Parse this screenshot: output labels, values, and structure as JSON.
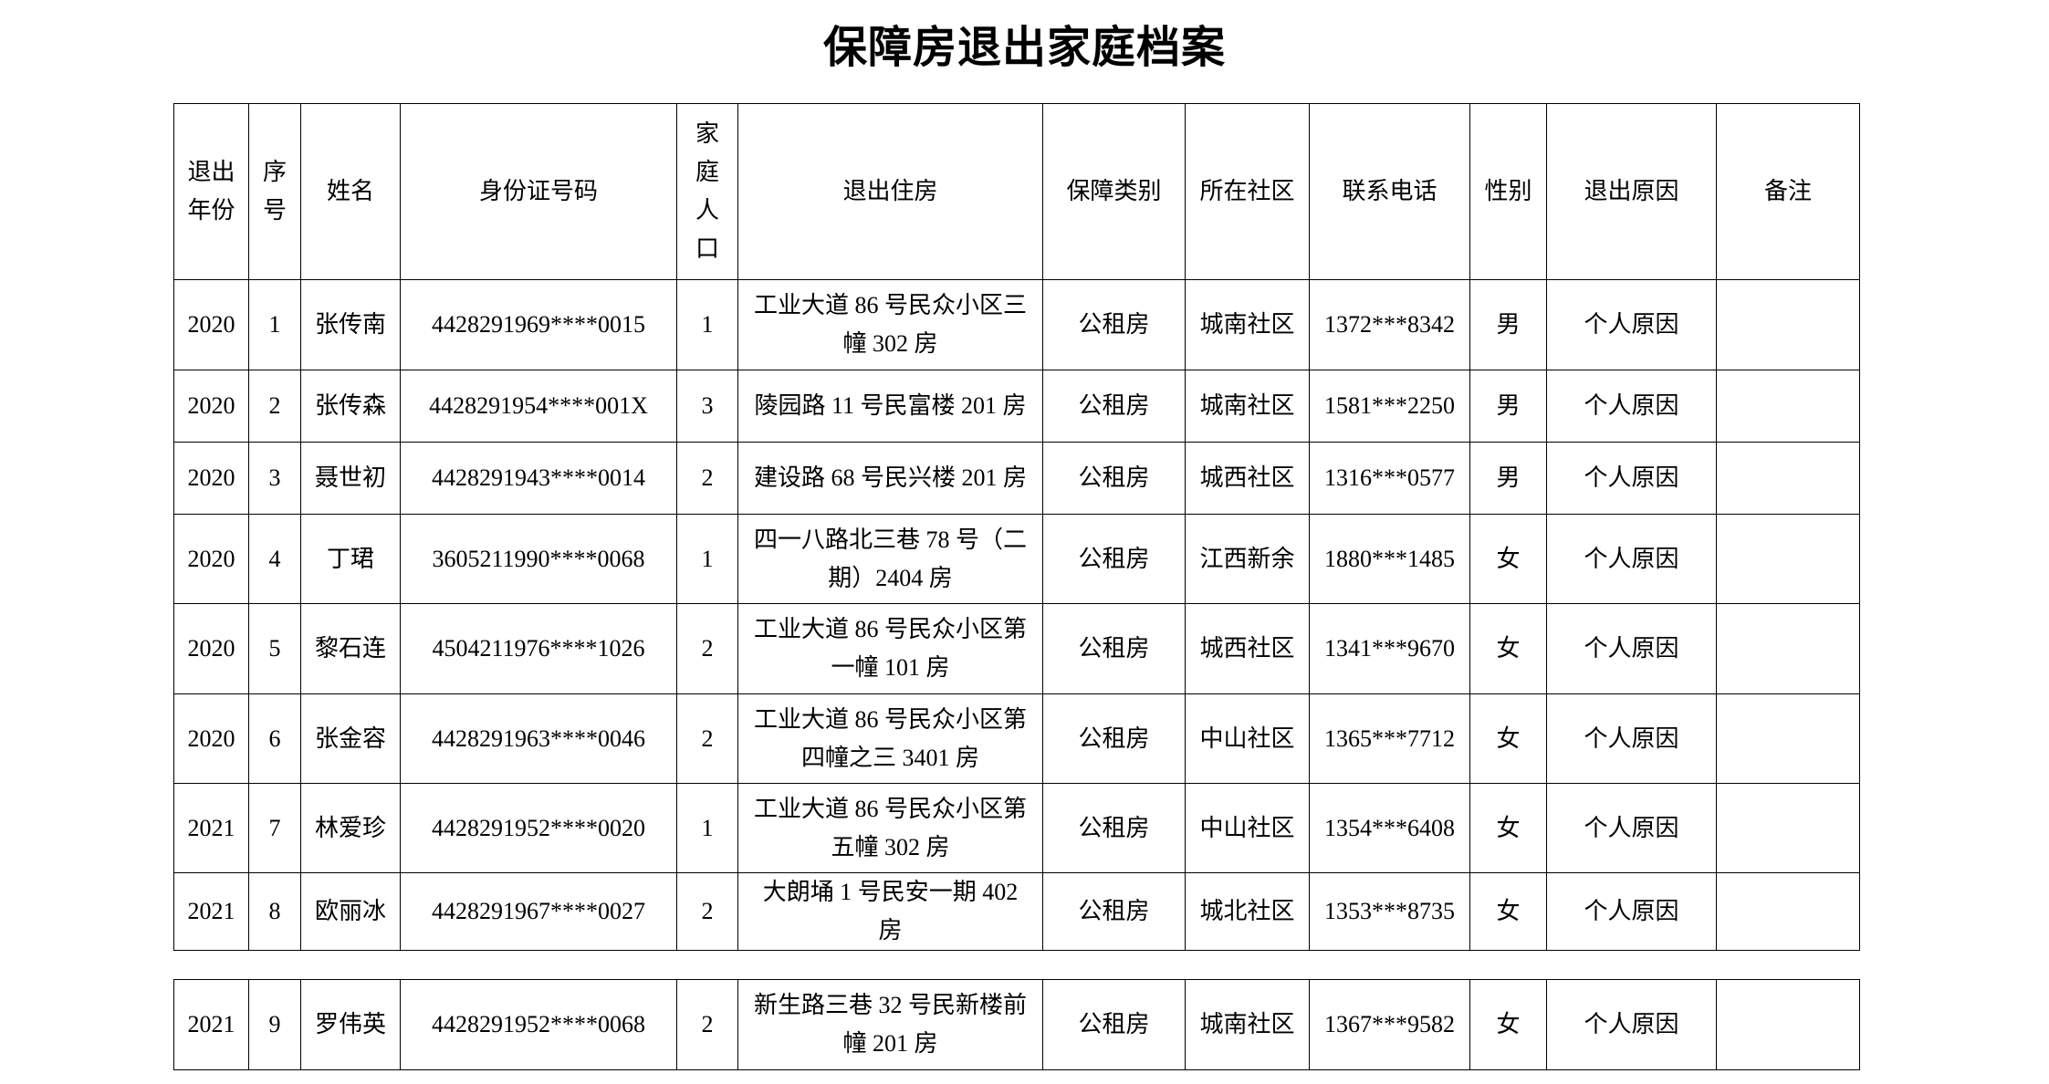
{
  "title": "保障房退出家庭档案",
  "headers": [
    "退出年份",
    "序号",
    "姓名",
    "身份证号码",
    "家庭人口",
    "退出住房",
    "保障类别",
    "所在社区",
    "联系电话",
    "性别",
    "退出原因",
    "备注"
  ],
  "rows": [
    {
      "year": "2020",
      "no": "1",
      "name": "张传南",
      "id": "4428291969****0015",
      "people": "1",
      "house": [
        "工业大道 86 号民众小区三",
        "幢 302 房"
      ],
      "type": "公租房",
      "community": "城南社区",
      "phone": "1372***8342",
      "gender": "男",
      "reason": "个人原因",
      "note": ""
    },
    {
      "year": "2020",
      "no": "2",
      "name": "张传森",
      "id": "4428291954****001X",
      "people": "3",
      "house": [
        "陵园路 11 号民富楼 201 房"
      ],
      "type": "公租房",
      "community": "城南社区",
      "phone": "1581***2250",
      "gender": "男",
      "reason": "个人原因",
      "note": ""
    },
    {
      "year": "2020",
      "no": "3",
      "name": "聂世初",
      "id": "4428291943****0014",
      "people": "2",
      "house": [
        "建设路 68 号民兴楼 201 房"
      ],
      "type": "公租房",
      "community": "城西社区",
      "phone": "1316***0577",
      "gender": "男",
      "reason": "个人原因",
      "note": ""
    },
    {
      "year": "2020",
      "no": "4",
      "name": "丁珺",
      "id": "3605211990****0068",
      "people": "1",
      "house": [
        "四一八路北三巷 78 号（二",
        "期）2404 房"
      ],
      "type": "公租房",
      "community": "江西新余",
      "phone": "1880***1485",
      "gender": "女",
      "reason": "个人原因",
      "note": ""
    },
    {
      "year": "2020",
      "no": "5",
      "name": "黎石连",
      "id": "4504211976****1026",
      "people": "2",
      "house": [
        "工业大道 86 号民众小区第",
        "一幢 101 房"
      ],
      "type": "公租房",
      "community": "城西社区",
      "phone": "1341***9670",
      "gender": "女",
      "reason": "个人原因",
      "note": ""
    },
    {
      "year": "2020",
      "no": "6",
      "name": "张金容",
      "id": "4428291963****0046",
      "people": "2",
      "house": [
        "工业大道 86 号民众小区第",
        "四幢之三 3401 房"
      ],
      "type": "公租房",
      "community": "中山社区",
      "phone": "1365***7712",
      "gender": "女",
      "reason": "个人原因",
      "note": ""
    },
    {
      "year": "2021",
      "no": "7",
      "name": "林爱珍",
      "id": "4428291952****0020",
      "people": "1",
      "house": [
        "工业大道 86 号民众小区第",
        "五幢 302 房"
      ],
      "type": "公租房",
      "community": "中山社区",
      "phone": "1354***6408",
      "gender": "女",
      "reason": "个人原因",
      "note": ""
    },
    {
      "year": "2021",
      "no": "8",
      "name": "欧丽冰",
      "id": "4428291967****0027",
      "people": "2",
      "house": [
        "大朗埇 1 号民安一期 402",
        "房"
      ],
      "type": "公租房",
      "community": "城北社区",
      "phone": "1353***8735",
      "gender": "女",
      "reason": "个人原因",
      "note": ""
    },
    {
      "year": "2021",
      "no": "9",
      "name": "罗伟英",
      "id": "4428291952****0068",
      "people": "2",
      "house": [
        "新生路三巷 32 号民新楼前",
        "幢 201 房"
      ],
      "type": "公租房",
      "community": "城南社区",
      "phone": "1367***9582",
      "gender": "女",
      "reason": "个人原因",
      "note": ""
    }
  ]
}
